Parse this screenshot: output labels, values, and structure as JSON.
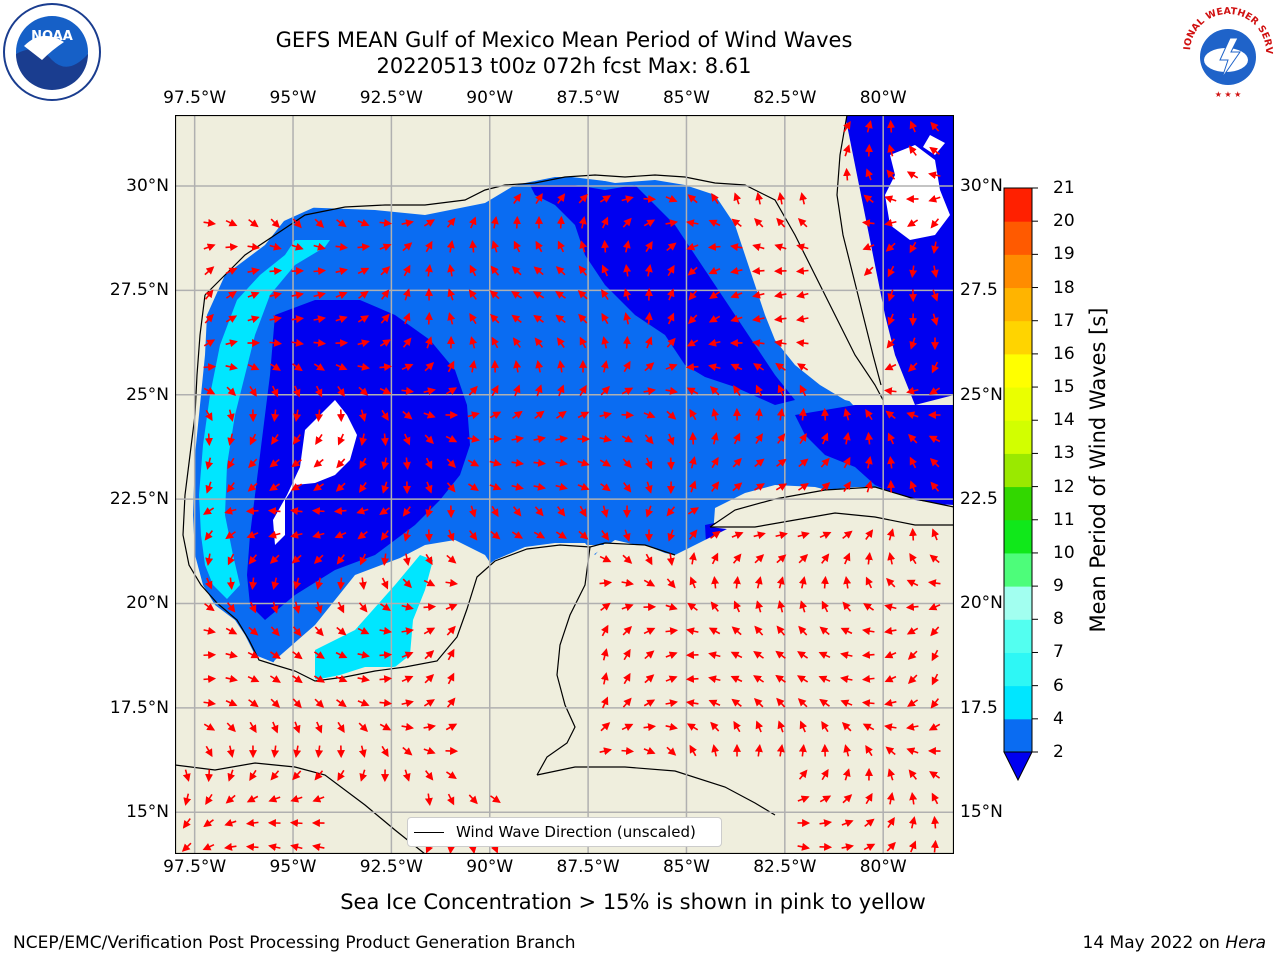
{
  "title": {
    "line1": "GEFS MEAN Gulf of Mexico Mean Period of Wind Waves",
    "line2": "20220513 t00z 072h fcst   Max: 8.61"
  },
  "axes": {
    "lon_labels": [
      "97.5°W",
      "95°W",
      "92.5°W",
      "90°W",
      "87.5°W",
      "85°W",
      "82.5°W",
      "80°W"
    ],
    "lat_labels_left": [
      "30°N",
      "27.5°N",
      "25°N",
      "22.5°N",
      "20°N",
      "17.5°N",
      "15°N"
    ],
    "lat_labels_right": [
      "30°N",
      "27.5",
      "25°N",
      "22.5",
      "20°N",
      "17.5",
      "15°N"
    ],
    "lon_range": [
      -98,
      -78.2
    ],
    "lat_range": [
      14,
      31.7
    ],
    "grid": true
  },
  "legend": {
    "label": "Wind Wave Direction (unscaled)"
  },
  "colorbar": {
    "label": "Mean Period of Wind Waves [s]",
    "ticks": [
      "2",
      "4",
      "6",
      "7",
      "8",
      "9",
      "10",
      "11",
      "12",
      "13",
      "14",
      "15",
      "16",
      "17",
      "18",
      "19",
      "20",
      "21"
    ],
    "colors": [
      "#0a6cf2",
      "#00e6ff",
      "#2ef7f5",
      "#53fff0",
      "#a2fff0",
      "#4dfd7a",
      "#10e81a",
      "#32d700",
      "#9ae900",
      "#d2ff00",
      "#eaff00",
      "#ffff00",
      "#ffd400",
      "#ffb400",
      "#ff8c00",
      "#ff5a00",
      "#ff2000",
      "#ff0000"
    ],
    "under_color": "#0000f0"
  },
  "map_colors": {
    "land": "#efeedd",
    "level_1": "#0000f0",
    "level_2": "#0a6cf2",
    "level_3": "#00e6ff",
    "level_4": "#53fff0",
    "arrow": "#ff0000"
  },
  "footer": {
    "note": "Sea Ice Concentration > 15% is shown in pink to yellow",
    "left": "NCEP/EMC/Verification Post Processing Product Generation Branch",
    "right_date": "14 May 2022 on ",
    "right_host": "Hera"
  },
  "logos": {
    "left": "NOAA",
    "right": "NATIONAL WEATHER SERVICE"
  }
}
